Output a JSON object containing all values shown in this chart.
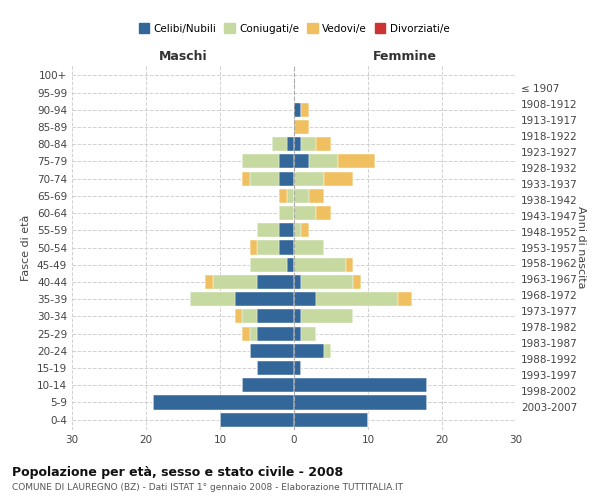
{
  "age_groups": [
    "0-4",
    "5-9",
    "10-14",
    "15-19",
    "20-24",
    "25-29",
    "30-34",
    "35-39",
    "40-44",
    "45-49",
    "50-54",
    "55-59",
    "60-64",
    "65-69",
    "70-74",
    "75-79",
    "80-84",
    "85-89",
    "90-94",
    "95-99",
    "100+"
  ],
  "birth_years": [
    "2003-2007",
    "1998-2002",
    "1993-1997",
    "1988-1992",
    "1983-1987",
    "1978-1982",
    "1973-1977",
    "1968-1972",
    "1963-1967",
    "1958-1962",
    "1953-1957",
    "1948-1952",
    "1943-1947",
    "1938-1942",
    "1933-1937",
    "1928-1932",
    "1923-1927",
    "1918-1922",
    "1913-1917",
    "1908-1912",
    "≤ 1907"
  ],
  "male_celibe": [
    10,
    19,
    7,
    5,
    6,
    5,
    5,
    8,
    5,
    1,
    2,
    2,
    0,
    0,
    2,
    2,
    1,
    0,
    0,
    0,
    0
  ],
  "male_coniug": [
    0,
    0,
    0,
    0,
    0,
    1,
    2,
    6,
    6,
    5,
    3,
    3,
    2,
    1,
    4,
    5,
    2,
    0,
    0,
    0,
    0
  ],
  "male_vedov": [
    0,
    0,
    0,
    0,
    0,
    1,
    1,
    0,
    1,
    0,
    1,
    0,
    0,
    1,
    1,
    0,
    0,
    0,
    0,
    0,
    0
  ],
  "male_divor": [
    0,
    0,
    0,
    0,
    0,
    0,
    0,
    0,
    0,
    0,
    0,
    0,
    0,
    0,
    0,
    0,
    0,
    0,
    0,
    0,
    0
  ],
  "female_celibe": [
    10,
    18,
    18,
    1,
    4,
    1,
    1,
    3,
    1,
    0,
    0,
    0,
    0,
    0,
    0,
    2,
    1,
    0,
    1,
    0,
    0
  ],
  "female_coniug": [
    0,
    0,
    0,
    0,
    1,
    2,
    7,
    11,
    7,
    7,
    4,
    1,
    3,
    2,
    4,
    4,
    2,
    0,
    0,
    0,
    0
  ],
  "female_vedov": [
    0,
    0,
    0,
    0,
    0,
    0,
    0,
    2,
    1,
    1,
    0,
    1,
    2,
    2,
    4,
    5,
    2,
    2,
    1,
    0,
    0
  ],
  "female_divor": [
    0,
    0,
    0,
    0,
    0,
    0,
    0,
    0,
    0,
    0,
    0,
    0,
    0,
    0,
    0,
    0,
    0,
    0,
    0,
    0,
    0
  ],
  "color_celibe": "#336699",
  "color_coniug": "#c5d9a0",
  "color_vedov": "#f0c060",
  "color_divor": "#cc3333",
  "title": "Popolazione per età, sesso e stato civile - 2008",
  "subtitle": "COMUNE DI LAUREGNO (BZ) - Dati ISTAT 1° gennaio 2008 - Elaborazione TUTTITALIA.IT",
  "xlabel_left": "Maschi",
  "xlabel_right": "Femmine",
  "ylabel_left": "Fasce di età",
  "ylabel_right": "Anni di nascita",
  "xlim": 30,
  "bg_color": "#ffffff",
  "grid_color": "#cccccc",
  "legend_labels": [
    "Celibi/Nubili",
    "Coniugati/e",
    "Vedovi/e",
    "Divorziati/e"
  ]
}
